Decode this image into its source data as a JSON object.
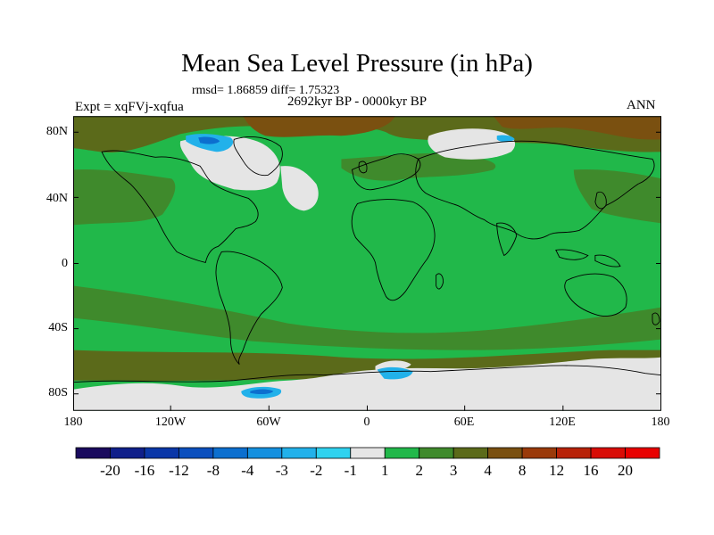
{
  "title": "Mean Sea Level Pressure (in hPa)",
  "stats": "rmsd= 1.86859 diff= 1.75323",
  "experiment": "Expt = xqFVj-xqfua",
  "period": "2692kyr BP - 0000kyr BP",
  "season": "ANN",
  "axes": {
    "y_ticks": [
      "80N",
      "40N",
      "0",
      "40S",
      "80S"
    ],
    "x_ticks": [
      "180",
      "120W",
      "60W",
      "0",
      "60E",
      "120E",
      "180"
    ]
  },
  "colorbar": {
    "labels": [
      "-20",
      "-16",
      "-12",
      "-8",
      "-4",
      "-3",
      "-2",
      "-1",
      "1",
      "2",
      "3",
      "4",
      "8",
      "12",
      "16",
      "20"
    ],
    "colors": [
      "#1a0a5e",
      "#0f1f8a",
      "#0a37a8",
      "#0b4fbe",
      "#0c6fcf",
      "#1590df",
      "#22b1ea",
      "#2fd2ef",
      "#e5e5e5",
      "#21b84a",
      "#3f8a2c",
      "#5b6a1a",
      "#7a5010",
      "#9a3a0a",
      "#b82208",
      "#d80c06",
      "#e80000"
    ]
  },
  "map_colors": {
    "green_light": "#21b84a",
    "green_dark": "#3f8a2c",
    "olive": "#5b6a1a",
    "brown": "#7a5010",
    "white": "#e5e5e5",
    "cyan": "#22b1ea",
    "blue": "#0c6fcf"
  }
}
